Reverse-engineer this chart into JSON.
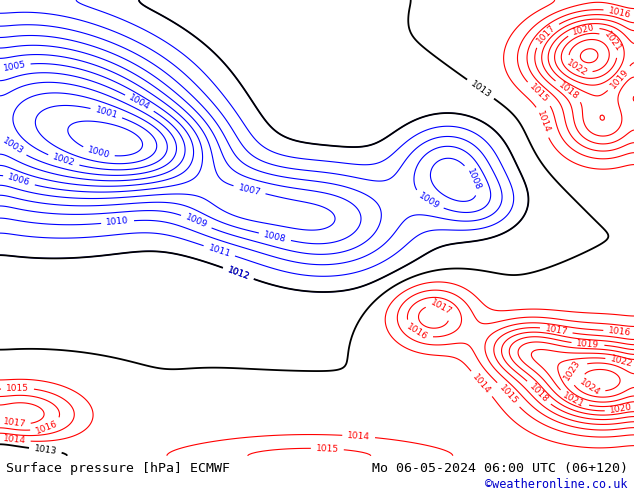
{
  "title_left": "Surface pressure [hPa] ECMWF",
  "title_right": "Mo 06-05-2024 06:00 UTC (06+120)",
  "credit": "©weatheronline.co.uk",
  "credit_color": "#0000cc",
  "land_color": "#b5d9a0",
  "ocean_color": "#c8c8c8",
  "border_color": "#888888",
  "title_fontsize": 9.5,
  "credit_fontsize": 8.5,
  "figsize": [
    6.34,
    4.9
  ],
  "dpi": 100,
  "bottom_bar_color": "#e0e0e0",
  "isobar_black_color": "#000000",
  "isobar_blue_color": "#0000ff",
  "isobar_red_color": "#ff0000",
  "label_fontsize": 6.5,
  "contour_linewidth_black": 1.3,
  "contour_linewidth_color": 0.8,
  "lon_min": -20,
  "lon_max": 62,
  "lat_min": -42,
  "lat_max": 43
}
